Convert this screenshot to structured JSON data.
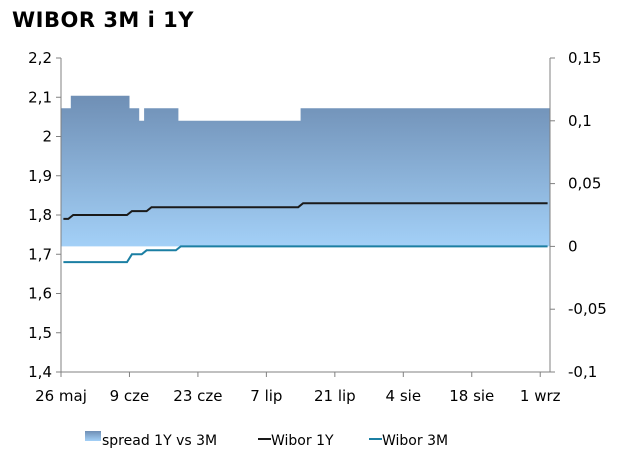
{
  "chart_data": {
    "type": "area+line",
    "title": "WIBOR 3M i 1Y",
    "x_dates": [
      "05-26",
      "05-27",
      "05-28",
      "05-29",
      "05-30",
      "05-31",
      "06-01",
      "06-02",
      "06-03",
      "06-04",
      "06-05",
      "06-06",
      "06-07",
      "06-08",
      "06-09",
      "06-10",
      "06-11",
      "06-12",
      "06-13",
      "06-14",
      "06-15",
      "06-16",
      "06-17",
      "06-18",
      "06-19",
      "06-20",
      "06-21",
      "06-22",
      "06-23",
      "06-24",
      "06-25",
      "06-26",
      "06-27",
      "06-28",
      "06-29",
      "06-30",
      "07-01",
      "07-02",
      "07-03",
      "07-04",
      "07-05",
      "07-06",
      "07-07",
      "07-08",
      "07-09",
      "07-10",
      "07-11",
      "07-12",
      "07-13",
      "07-14",
      "07-15",
      "07-16",
      "07-17",
      "07-18",
      "07-19",
      "07-20",
      "07-21",
      "07-22",
      "07-23",
      "07-24",
      "07-25",
      "07-26",
      "07-27",
      "07-28",
      "07-29",
      "07-30",
      "07-31",
      "08-01",
      "08-02",
      "08-03",
      "08-04",
      "08-05",
      "08-06",
      "08-07",
      "08-08",
      "08-09",
      "08-10",
      "08-11",
      "08-12",
      "08-13",
      "08-14",
      "08-15",
      "08-16",
      "08-17",
      "08-18",
      "08-19",
      "08-20",
      "08-21",
      "08-22",
      "08-23",
      "08-24",
      "08-25",
      "08-26",
      "08-27",
      "08-28",
      "08-29",
      "08-30",
      "08-31",
      "09-01",
      "09-02"
    ],
    "x_tick_labels": [
      "26 maj",
      "9 cze",
      "23 cze",
      "7 lip",
      "21 lip",
      "4 sie",
      "18 sie",
      "1 wrz"
    ],
    "x_tick_index": [
      0,
      14,
      28,
      42,
      56,
      70,
      84,
      98
    ],
    "y_left": {
      "min": 1.4,
      "max": 2.2,
      "ticks": [
        "1,4",
        "1,5",
        "1,6",
        "1,7",
        "1,8",
        "1,9",
        "2",
        "2,1",
        "2,2"
      ]
    },
    "y_right": {
      "min": -0.1,
      "max": 0.15,
      "ticks": [
        "-0,1",
        "-0,05",
        "0",
        "0,05",
        "0,1",
        "0,15"
      ]
    },
    "series": [
      {
        "name": "spread 1Y vs 3M",
        "axis": "right",
        "type": "area",
        "segments": [
          {
            "from": 0,
            "to": 1,
            "value": 0.11
          },
          {
            "from": 2,
            "to": 13,
            "value": 0.12
          },
          {
            "from": 14,
            "to": 15,
            "value": 0.11
          },
          {
            "from": 16,
            "to": 16,
            "value": 0.1
          },
          {
            "from": 17,
            "to": 19,
            "value": 0.11
          },
          {
            "from": 20,
            "to": 23,
            "value": 0.11
          },
          {
            "from": 24,
            "to": 48,
            "value": 0.1
          },
          {
            "from": 49,
            "to": 99,
            "value": 0.11
          }
        ]
      },
      {
        "name": "Wibor 1Y",
        "axis": "left",
        "type": "line",
        "segments": [
          {
            "from": 0,
            "to": 1,
            "value": 1.79
          },
          {
            "from": 2,
            "to": 13,
            "value": 1.8
          },
          {
            "from": 14,
            "to": 17,
            "value": 1.81
          },
          {
            "from": 18,
            "to": 48,
            "value": 1.82
          },
          {
            "from": 49,
            "to": 99,
            "value": 1.83
          }
        ]
      },
      {
        "name": "Wibor 3M",
        "axis": "left",
        "type": "line",
        "segments": [
          {
            "from": 0,
            "to": 13,
            "value": 1.68
          },
          {
            "from": 14,
            "to": 16,
            "value": 1.7
          },
          {
            "from": 17,
            "to": 23,
            "value": 1.71
          },
          {
            "from": 24,
            "to": 99,
            "value": 1.72
          }
        ]
      }
    ],
    "legend_position": "bottom",
    "grid": false
  },
  "colors": {
    "area_top": "#6f8fb5",
    "area_bottom": "#9fcef5",
    "wibor_1y": "#1a1a1a",
    "wibor_3m": "#1b7fa3"
  }
}
